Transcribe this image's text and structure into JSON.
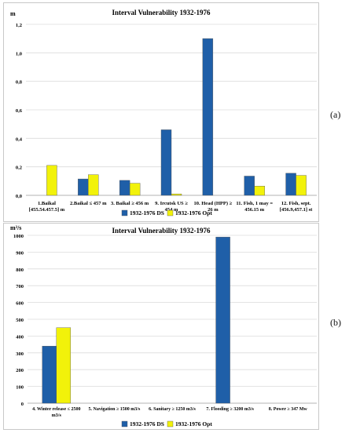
{
  "panel_labels": [
    "(a)",
    "(b)"
  ],
  "chart_data": [
    {
      "type": "bar",
      "title": "Interval Vulnerability  1932-1976",
      "ylabel": "m",
      "ylim": [
        0,
        1.2
      ],
      "yticks": [
        "0,0",
        "0,2",
        "0,4",
        "0,6",
        "0,8",
        "1,0",
        "1,2"
      ],
      "grid": true,
      "legend": "bottom",
      "categories": [
        [
          "1.Baikal",
          "[455.54.457.5] m"
        ],
        [
          "2.Baikal ≤ 457 m"
        ],
        [
          "3. Baikal ≥ 456 m"
        ],
        [
          "9. Ircutsk US ≥",
          "454 m"
        ],
        [
          "10. Head  (HPP) ≥",
          "26 m"
        ],
        [
          "11. Fish, 1 may =",
          "456.15 m"
        ],
        [
          "12. Fish, sept.",
          "[456.9,457.1] st"
        ]
      ],
      "series": [
        {
          "name": "1932-1976 DS",
          "color": "#1f5fa8",
          "values": [
            0,
            0.115,
            0.105,
            0.46,
            1.1,
            0.135,
            0.155
          ]
        },
        {
          "name": "1932-1976 Opt",
          "color": "#f2f20a",
          "values": [
            0.21,
            0.145,
            0.085,
            0.01,
            0,
            0.065,
            0.14
          ]
        }
      ]
    },
    {
      "type": "bar",
      "title": "Interval Vulnerability  1932-1976",
      "ylabel": "m³/s",
      "ylim": [
        0,
        1000
      ],
      "yticks": [
        "0",
        "100",
        "200",
        "300",
        "400",
        "500",
        "600",
        "700",
        "800",
        "900",
        "1000"
      ],
      "grid": true,
      "legend": "bottom",
      "categories": [
        [
          "4. Winter release ≤ 2500",
          "m3/s"
        ],
        [
          "5. Navigation ≥ 1500 m3/s"
        ],
        [
          "6. Sanitary ≥ 1250 m3/s"
        ],
        [
          "7. Flooding ≥ 3200 m3/s"
        ],
        [
          "8. Power ≥ 347 Mw"
        ]
      ],
      "series": [
        {
          "name": "1932-1976 DS",
          "color": "#1f5fa8",
          "values": [
            340,
            0,
            0,
            990,
            0
          ]
        },
        {
          "name": "1932-1976 Opt",
          "color": "#f2f20a",
          "values": [
            450,
            0,
            0,
            0,
            0
          ]
        }
      ]
    }
  ]
}
